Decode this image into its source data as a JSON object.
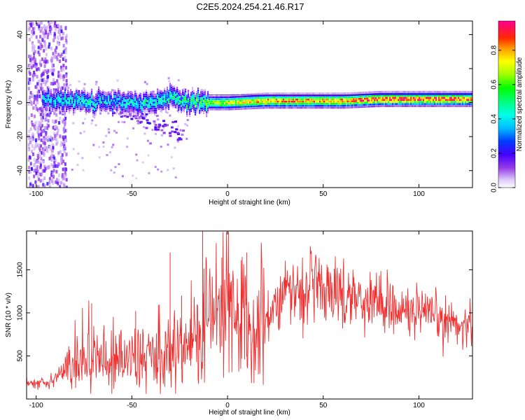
{
  "title": "C2E5.2024.254.21.46.R17",
  "chart_data": [
    {
      "type": "heatmap",
      "title": "C2E5.2024.254.21.46.R17",
      "xlabel": "Height of straight line (km)",
      "ylabel": "Frequency (Hz)",
      "xlim": [
        -105,
        128
      ],
      "ylim": [
        -50,
        48
      ],
      "xticks": [
        -100,
        -50,
        0,
        50,
        100
      ],
      "yticks": [
        -40,
        -20,
        0,
        20,
        40
      ],
      "grid": false,
      "colorbar": {
        "label": "Normalized spectral amplitude",
        "range": [
          0.0,
          0.97
        ],
        "ticks": [
          0.0,
          0.2,
          0.4,
          0.6,
          0.8
        ],
        "tick_labels": [
          "0.0",
          "0.2",
          "0.4",
          "0.6",
          "0.8"
        ],
        "colormap": [
          "#ffffff",
          "#d8c8f8",
          "#8a2be2",
          "#3a00ff",
          "#0000ff",
          "#00bfff",
          "#00ffff",
          "#00ff80",
          "#00ff00",
          "#80ff00",
          "#ffff00",
          "#ffa500",
          "#ff4000",
          "#ff0000",
          "#ff0080"
        ]
      },
      "ridge": {
        "description_points_x": [
          -95,
          -80,
          -60,
          -40,
          -30,
          -20,
          0,
          20,
          40,
          60,
          80,
          100,
          128
        ],
        "frequency_y": [
          2,
          1,
          0,
          0,
          3,
          0,
          0,
          1,
          1,
          1,
          2,
          2,
          2
        ],
        "peak_amplitude": [
          0.45,
          0.5,
          0.45,
          0.5,
          0.55,
          0.6,
          0.75,
          0.85,
          0.85,
          0.85,
          0.95,
          0.95,
          0.9
        ]
      },
      "branch": {
        "x": [
          -60,
          -50,
          -40,
          -30,
          -22
        ],
        "y": [
          -2,
          -6,
          -12,
          -16,
          -20
        ]
      }
    },
    {
      "type": "line",
      "xlabel": "Height of straight line (km)",
      "ylabel": "SNR (10 * v/v)",
      "xlim": [
        -105,
        128
      ],
      "ylim": [
        0,
        1950
      ],
      "xticks": [
        -100,
        -50,
        0,
        50,
        100
      ],
      "yticks": [
        500,
        1000,
        1500
      ],
      "grid": false,
      "series_color": "#f03030",
      "series": [
        {
          "x": [
            -105,
            -95,
            -90,
            -85,
            -80,
            -75,
            -70,
            -65,
            -60,
            -55,
            -50,
            -45,
            -40,
            -35,
            -30,
            -25,
            -20,
            -15,
            -10,
            -5,
            0,
            5,
            10,
            15,
            20,
            25,
            30,
            35,
            40,
            45,
            50,
            55,
            60,
            65,
            70,
            75,
            80,
            85,
            90,
            95,
            100,
            105,
            110,
            115,
            120,
            128
          ],
          "y": [
            180,
            200,
            250,
            330,
            450,
            520,
            480,
            430,
            450,
            430,
            420,
            440,
            470,
            500,
            540,
            580,
            620,
            750,
            950,
            1000,
            1050,
            900,
            820,
            880,
            1000,
            1130,
            1220,
            1260,
            1280,
            1290,
            1280,
            1260,
            1220,
            1200,
            1160,
            1150,
            1130,
            1100,
            1050,
            1000,
            980,
            950,
            930,
            900,
            870,
            860
          ]
        }
      ],
      "spikes": [
        {
          "x": -71,
          "y": 1110
        },
        {
          "x": -48,
          "y": 1020
        },
        {
          "x": -30,
          "y": 1700
        },
        {
          "x": -24,
          "y": 1200
        },
        {
          "x": -13,
          "y": 1950
        },
        {
          "x": -3,
          "y": 1640
        },
        {
          "x": 10,
          "y": 1700
        }
      ]
    }
  ]
}
